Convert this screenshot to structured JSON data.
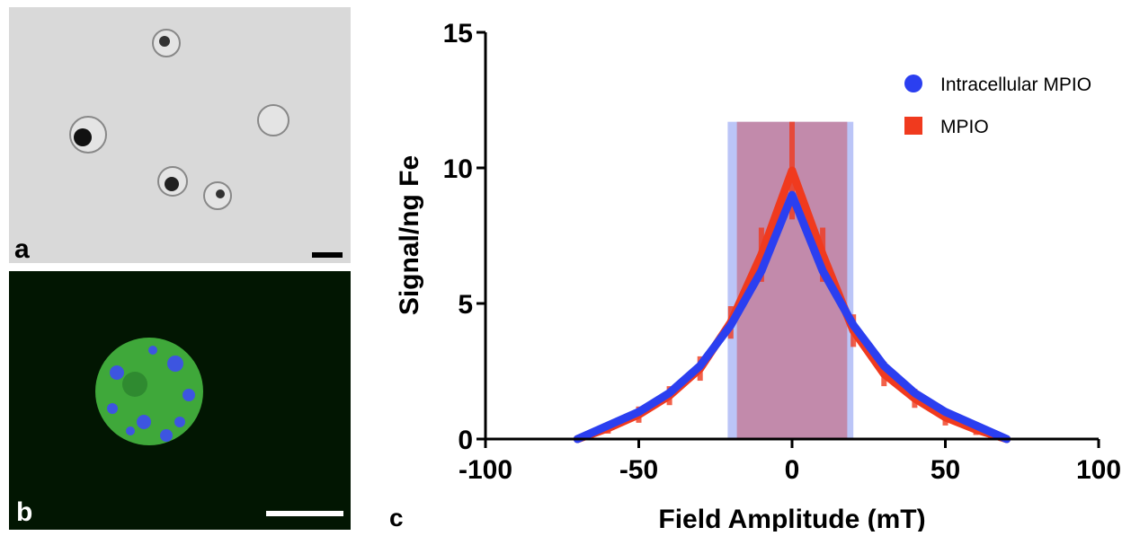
{
  "panel_labels": {
    "a": "a",
    "b": "b"
  },
  "chart_data": {
    "type": "line",
    "panel_label": "c",
    "x_label": "Field Amplitude (mT)",
    "y_label": "Signal/ng Fe",
    "xlim": [
      -100,
      100
    ],
    "xticks": [
      -100,
      -50,
      0,
      50,
      100
    ],
    "ylim": [
      0,
      15
    ],
    "yticks": [
      0,
      5,
      10,
      15
    ],
    "x": [
      -70,
      -60,
      -50,
      -40,
      -30,
      -20,
      -10,
      0,
      10,
      20,
      30,
      40,
      50,
      60,
      70
    ],
    "series": [
      {
        "name": "MPIO",
        "color": "#f03a1e",
        "marker": "square",
        "values": [
          0,
          0.4,
          0.9,
          1.6,
          2.6,
          4.3,
          6.8,
          9.9,
          6.8,
          4.0,
          2.4,
          1.5,
          0.8,
          0.35,
          0
        ],
        "errors": [
          0.1,
          0.2,
          0.3,
          0.35,
          0.45,
          0.6,
          1.0,
          1.8,
          1.0,
          0.6,
          0.45,
          0.35,
          0.3,
          0.2,
          0.1
        ]
      },
      {
        "name": "Intracellular MPIO",
        "color": "#2b3ff0",
        "marker": "circle",
        "values": [
          0,
          0.5,
          1.0,
          1.7,
          2.7,
          4.2,
          6.2,
          9.0,
          6.2,
          4.2,
          2.7,
          1.7,
          1.0,
          0.5,
          0
        ]
      }
    ],
    "legend_order": [
      1,
      0
    ],
    "shaded_regions": [
      {
        "x": [
          -21,
          20
        ],
        "y": [
          0,
          11.7
        ],
        "color": "rgba(120,140,240,0.5)"
      },
      {
        "x": [
          -18,
          18
        ],
        "y": [
          0,
          11.7
        ],
        "color": "rgba(200,90,110,0.55)"
      }
    ]
  }
}
